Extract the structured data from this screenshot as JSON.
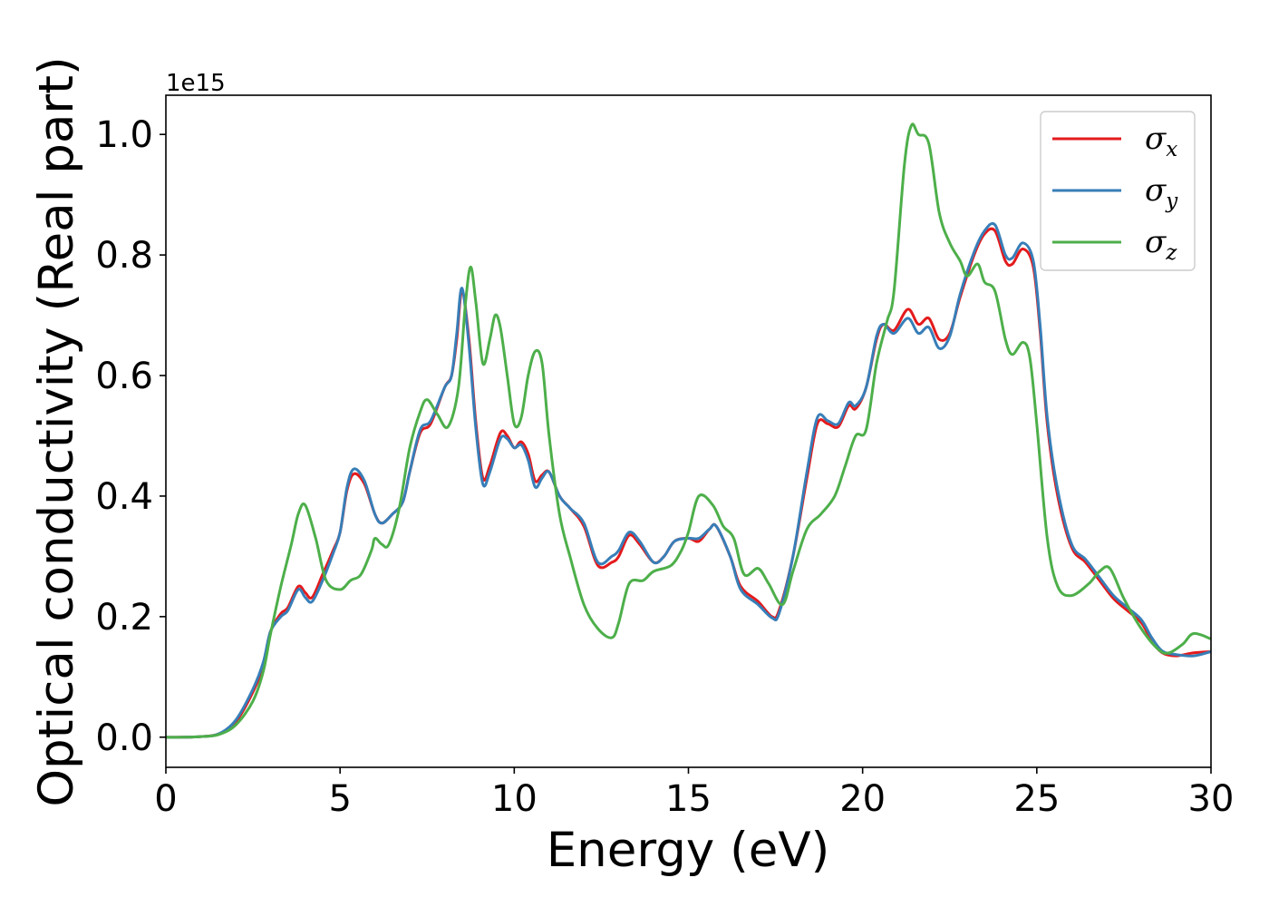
{
  "chart_data": {
    "type": "line",
    "xlabel": "Energy (eV)",
    "ylabel": "Optical conductivity (Real part)",
    "y_offset_text": "1e15",
    "xlim": [
      0,
      30
    ],
    "ylim": [
      -0.05,
      1.065
    ],
    "x_ticks": [
      0,
      5,
      10,
      15,
      20,
      25,
      30
    ],
    "x_tick_labels": [
      "0",
      "5",
      "10",
      "15",
      "20",
      "25",
      "30"
    ],
    "y_ticks": [
      0.0,
      0.2,
      0.4,
      0.6,
      0.8,
      1.0
    ],
    "y_tick_labels": [
      "0.0",
      "0.2",
      "0.4",
      "0.6",
      "0.8",
      "1.0"
    ],
    "grid": false,
    "legend_position": "top-right",
    "series": [
      {
        "name": "σx",
        "legend_base": "σ",
        "legend_sub": "x",
        "color": "#e41a1c",
        "points": [
          [
            0,
            0
          ],
          [
            0.5,
            0
          ],
          [
            1,
            0.001
          ],
          [
            1.5,
            0.005
          ],
          [
            2,
            0.025
          ],
          [
            2.5,
            0.075
          ],
          [
            2.8,
            0.12
          ],
          [
            3,
            0.175
          ],
          [
            3.3,
            0.205
          ],
          [
            3.5,
            0.215
          ],
          [
            3.8,
            0.25
          ],
          [
            4,
            0.24
          ],
          [
            4.2,
            0.232
          ],
          [
            4.5,
            0.27
          ],
          [
            4.8,
            0.31
          ],
          [
            5,
            0.34
          ],
          [
            5.2,
            0.41
          ],
          [
            5.4,
            0.437
          ],
          [
            5.7,
            0.42
          ],
          [
            6,
            0.37
          ],
          [
            6.2,
            0.355
          ],
          [
            6.5,
            0.37
          ],
          [
            6.8,
            0.39
          ],
          [
            7,
            0.44
          ],
          [
            7.3,
            0.505
          ],
          [
            7.6,
            0.52
          ],
          [
            8,
            0.58
          ],
          [
            8.2,
            0.6
          ],
          [
            8.35,
            0.66
          ],
          [
            8.5,
            0.74
          ],
          [
            8.7,
            0.66
          ],
          [
            8.9,
            0.52
          ],
          [
            9.1,
            0.43
          ],
          [
            9.3,
            0.45
          ],
          [
            9.6,
            0.505
          ],
          [
            9.8,
            0.5
          ],
          [
            10,
            0.48
          ],
          [
            10.2,
            0.49
          ],
          [
            10.4,
            0.47
          ],
          [
            10.6,
            0.425
          ],
          [
            10.8,
            0.435
          ],
          [
            11,
            0.44
          ],
          [
            11.3,
            0.4
          ],
          [
            11.6,
            0.38
          ],
          [
            12,
            0.35
          ],
          [
            12.4,
            0.285
          ],
          [
            12.8,
            0.29
          ],
          [
            13,
            0.3
          ],
          [
            13.3,
            0.335
          ],
          [
            13.6,
            0.32
          ],
          [
            14,
            0.29
          ],
          [
            14.3,
            0.3
          ],
          [
            14.6,
            0.325
          ],
          [
            15,
            0.33
          ],
          [
            15.3,
            0.325
          ],
          [
            15.6,
            0.345
          ],
          [
            15.8,
            0.35
          ],
          [
            16.2,
            0.3
          ],
          [
            16.5,
            0.25
          ],
          [
            17,
            0.225
          ],
          [
            17.4,
            0.2
          ],
          [
            17.6,
            0.21
          ],
          [
            18,
            0.3
          ],
          [
            18.4,
            0.43
          ],
          [
            18.7,
            0.52
          ],
          [
            19,
            0.52
          ],
          [
            19.3,
            0.515
          ],
          [
            19.6,
            0.55
          ],
          [
            19.8,
            0.545
          ],
          [
            20.1,
            0.58
          ],
          [
            20.4,
            0.66
          ],
          [
            20.6,
            0.685
          ],
          [
            20.9,
            0.675
          ],
          [
            21.3,
            0.71
          ],
          [
            21.6,
            0.685
          ],
          [
            21.9,
            0.695
          ],
          [
            22.2,
            0.66
          ],
          [
            22.5,
            0.67
          ],
          [
            22.8,
            0.73
          ],
          [
            23.2,
            0.8
          ],
          [
            23.5,
            0.835
          ],
          [
            23.8,
            0.84
          ],
          [
            24.1,
            0.79
          ],
          [
            24.3,
            0.785
          ],
          [
            24.6,
            0.81
          ],
          [
            24.9,
            0.78
          ],
          [
            25.1,
            0.67
          ],
          [
            25.3,
            0.52
          ],
          [
            25.6,
            0.4
          ],
          [
            26,
            0.315
          ],
          [
            26.4,
            0.29
          ],
          [
            26.8,
            0.26
          ],
          [
            27.2,
            0.23
          ],
          [
            27.6,
            0.21
          ],
          [
            28,
            0.19
          ],
          [
            28.3,
            0.16
          ],
          [
            28.6,
            0.14
          ],
          [
            29,
            0.135
          ],
          [
            29.5,
            0.14
          ],
          [
            30,
            0.142
          ]
        ]
      },
      {
        "name": "σy",
        "legend_base": "σ",
        "legend_sub": "y",
        "color": "#377eb8",
        "points": [
          [
            0,
            0
          ],
          [
            0.5,
            0
          ],
          [
            1,
            0.001
          ],
          [
            1.5,
            0.005
          ],
          [
            2,
            0.028
          ],
          [
            2.5,
            0.08
          ],
          [
            2.8,
            0.125
          ],
          [
            3,
            0.175
          ],
          [
            3.3,
            0.2
          ],
          [
            3.5,
            0.21
          ],
          [
            3.8,
            0.245
          ],
          [
            4,
            0.232
          ],
          [
            4.2,
            0.225
          ],
          [
            4.5,
            0.26
          ],
          [
            4.8,
            0.305
          ],
          [
            5,
            0.34
          ],
          [
            5.2,
            0.415
          ],
          [
            5.4,
            0.445
          ],
          [
            5.7,
            0.425
          ],
          [
            6,
            0.37
          ],
          [
            6.2,
            0.355
          ],
          [
            6.5,
            0.37
          ],
          [
            6.8,
            0.39
          ],
          [
            7,
            0.44
          ],
          [
            7.3,
            0.51
          ],
          [
            7.6,
            0.525
          ],
          [
            8,
            0.58
          ],
          [
            8.2,
            0.6
          ],
          [
            8.35,
            0.67
          ],
          [
            8.5,
            0.745
          ],
          [
            8.7,
            0.65
          ],
          [
            8.9,
            0.51
          ],
          [
            9.1,
            0.42
          ],
          [
            9.3,
            0.44
          ],
          [
            9.6,
            0.495
          ],
          [
            9.8,
            0.495
          ],
          [
            10,
            0.48
          ],
          [
            10.2,
            0.485
          ],
          [
            10.4,
            0.46
          ],
          [
            10.6,
            0.415
          ],
          [
            10.8,
            0.43
          ],
          [
            11,
            0.44
          ],
          [
            11.3,
            0.4
          ],
          [
            11.6,
            0.38
          ],
          [
            12,
            0.355
          ],
          [
            12.4,
            0.29
          ],
          [
            12.8,
            0.3
          ],
          [
            13,
            0.31
          ],
          [
            13.3,
            0.34
          ],
          [
            13.6,
            0.325
          ],
          [
            14,
            0.29
          ],
          [
            14.3,
            0.3
          ],
          [
            14.6,
            0.325
          ],
          [
            15,
            0.33
          ],
          [
            15.3,
            0.33
          ],
          [
            15.6,
            0.345
          ],
          [
            15.8,
            0.35
          ],
          [
            16.2,
            0.3
          ],
          [
            16.5,
            0.245
          ],
          [
            17,
            0.22
          ],
          [
            17.4,
            0.198
          ],
          [
            17.6,
            0.205
          ],
          [
            18,
            0.3
          ],
          [
            18.4,
            0.44
          ],
          [
            18.7,
            0.53
          ],
          [
            19,
            0.525
          ],
          [
            19.3,
            0.52
          ],
          [
            19.6,
            0.555
          ],
          [
            19.8,
            0.55
          ],
          [
            20.1,
            0.58
          ],
          [
            20.4,
            0.665
          ],
          [
            20.6,
            0.685
          ],
          [
            20.9,
            0.67
          ],
          [
            21.3,
            0.695
          ],
          [
            21.6,
            0.67
          ],
          [
            21.9,
            0.68
          ],
          [
            22.2,
            0.645
          ],
          [
            22.5,
            0.665
          ],
          [
            22.8,
            0.735
          ],
          [
            23.2,
            0.805
          ],
          [
            23.5,
            0.84
          ],
          [
            23.8,
            0.85
          ],
          [
            24.1,
            0.8
          ],
          [
            24.3,
            0.795
          ],
          [
            24.6,
            0.82
          ],
          [
            24.9,
            0.79
          ],
          [
            25.1,
            0.68
          ],
          [
            25.3,
            0.53
          ],
          [
            25.6,
            0.41
          ],
          [
            26,
            0.32
          ],
          [
            26.4,
            0.295
          ],
          [
            26.8,
            0.265
          ],
          [
            27.2,
            0.235
          ],
          [
            27.6,
            0.215
          ],
          [
            28,
            0.195
          ],
          [
            28.3,
            0.165
          ],
          [
            28.6,
            0.143
          ],
          [
            29,
            0.137
          ],
          [
            29.5,
            0.135
          ],
          [
            30,
            0.142
          ]
        ]
      },
      {
        "name": "σz",
        "legend_base": "σ",
        "legend_sub": "z",
        "color": "#4daf4a",
        "points": [
          [
            0,
            0
          ],
          [
            0.5,
            0
          ],
          [
            1,
            0.001
          ],
          [
            1.5,
            0.004
          ],
          [
            2,
            0.02
          ],
          [
            2.5,
            0.06
          ],
          [
            2.8,
            0.11
          ],
          [
            3,
            0.17
          ],
          [
            3.3,
            0.25
          ],
          [
            3.6,
            0.32
          ],
          [
            3.8,
            0.37
          ],
          [
            4,
            0.385
          ],
          [
            4.3,
            0.33
          ],
          [
            4.6,
            0.26
          ],
          [
            5,
            0.245
          ],
          [
            5.3,
            0.26
          ],
          [
            5.6,
            0.27
          ],
          [
            5.9,
            0.31
          ],
          [
            6,
            0.33
          ],
          [
            6.2,
            0.32
          ],
          [
            6.4,
            0.32
          ],
          [
            6.7,
            0.38
          ],
          [
            7,
            0.48
          ],
          [
            7.3,
            0.54
          ],
          [
            7.5,
            0.56
          ],
          [
            7.8,
            0.535
          ],
          [
            8.1,
            0.515
          ],
          [
            8.4,
            0.58
          ],
          [
            8.6,
            0.72
          ],
          [
            8.75,
            0.78
          ],
          [
            8.9,
            0.72
          ],
          [
            9.1,
            0.62
          ],
          [
            9.3,
            0.66
          ],
          [
            9.45,
            0.7
          ],
          [
            9.6,
            0.68
          ],
          [
            9.8,
            0.6
          ],
          [
            10,
            0.52
          ],
          [
            10.2,
            0.53
          ],
          [
            10.4,
            0.6
          ],
          [
            10.6,
            0.64
          ],
          [
            10.8,
            0.62
          ],
          [
            11,
            0.5
          ],
          [
            11.3,
            0.37
          ],
          [
            11.6,
            0.3
          ],
          [
            12,
            0.22
          ],
          [
            12.4,
            0.18
          ],
          [
            12.8,
            0.165
          ],
          [
            13,
            0.19
          ],
          [
            13.3,
            0.255
          ],
          [
            13.7,
            0.26
          ],
          [
            14,
            0.275
          ],
          [
            14.5,
            0.285
          ],
          [
            14.8,
            0.31
          ],
          [
            15,
            0.34
          ],
          [
            15.3,
            0.4
          ],
          [
            15.7,
            0.385
          ],
          [
            16,
            0.35
          ],
          [
            16.3,
            0.33
          ],
          [
            16.6,
            0.27
          ],
          [
            17,
            0.28
          ],
          [
            17.3,
            0.255
          ],
          [
            17.7,
            0.22
          ],
          [
            18,
            0.275
          ],
          [
            18.4,
            0.345
          ],
          [
            18.8,
            0.37
          ],
          [
            19.2,
            0.4
          ],
          [
            19.5,
            0.45
          ],
          [
            19.8,
            0.5
          ],
          [
            20.1,
            0.51
          ],
          [
            20.4,
            0.62
          ],
          [
            20.7,
            0.69
          ],
          [
            20.9,
            0.74
          ],
          [
            21.2,
            0.95
          ],
          [
            21.4,
            1.015
          ],
          [
            21.6,
            1
          ],
          [
            21.9,
            0.985
          ],
          [
            22.2,
            0.87
          ],
          [
            22.5,
            0.82
          ],
          [
            22.8,
            0.79
          ],
          [
            23,
            0.765
          ],
          [
            23.3,
            0.785
          ],
          [
            23.5,
            0.755
          ],
          [
            23.8,
            0.74
          ],
          [
            24.1,
            0.66
          ],
          [
            24.3,
            0.635
          ],
          [
            24.6,
            0.655
          ],
          [
            24.8,
            0.63
          ],
          [
            25,
            0.52
          ],
          [
            25.3,
            0.33
          ],
          [
            25.6,
            0.25
          ],
          [
            26,
            0.235
          ],
          [
            26.5,
            0.255
          ],
          [
            26.8,
            0.275
          ],
          [
            27.1,
            0.28
          ],
          [
            27.5,
            0.23
          ],
          [
            28,
            0.18
          ],
          [
            28.5,
            0.145
          ],
          [
            28.8,
            0.14
          ],
          [
            29.2,
            0.155
          ],
          [
            29.5,
            0.172
          ],
          [
            30,
            0.163
          ]
        ]
      }
    ]
  }
}
